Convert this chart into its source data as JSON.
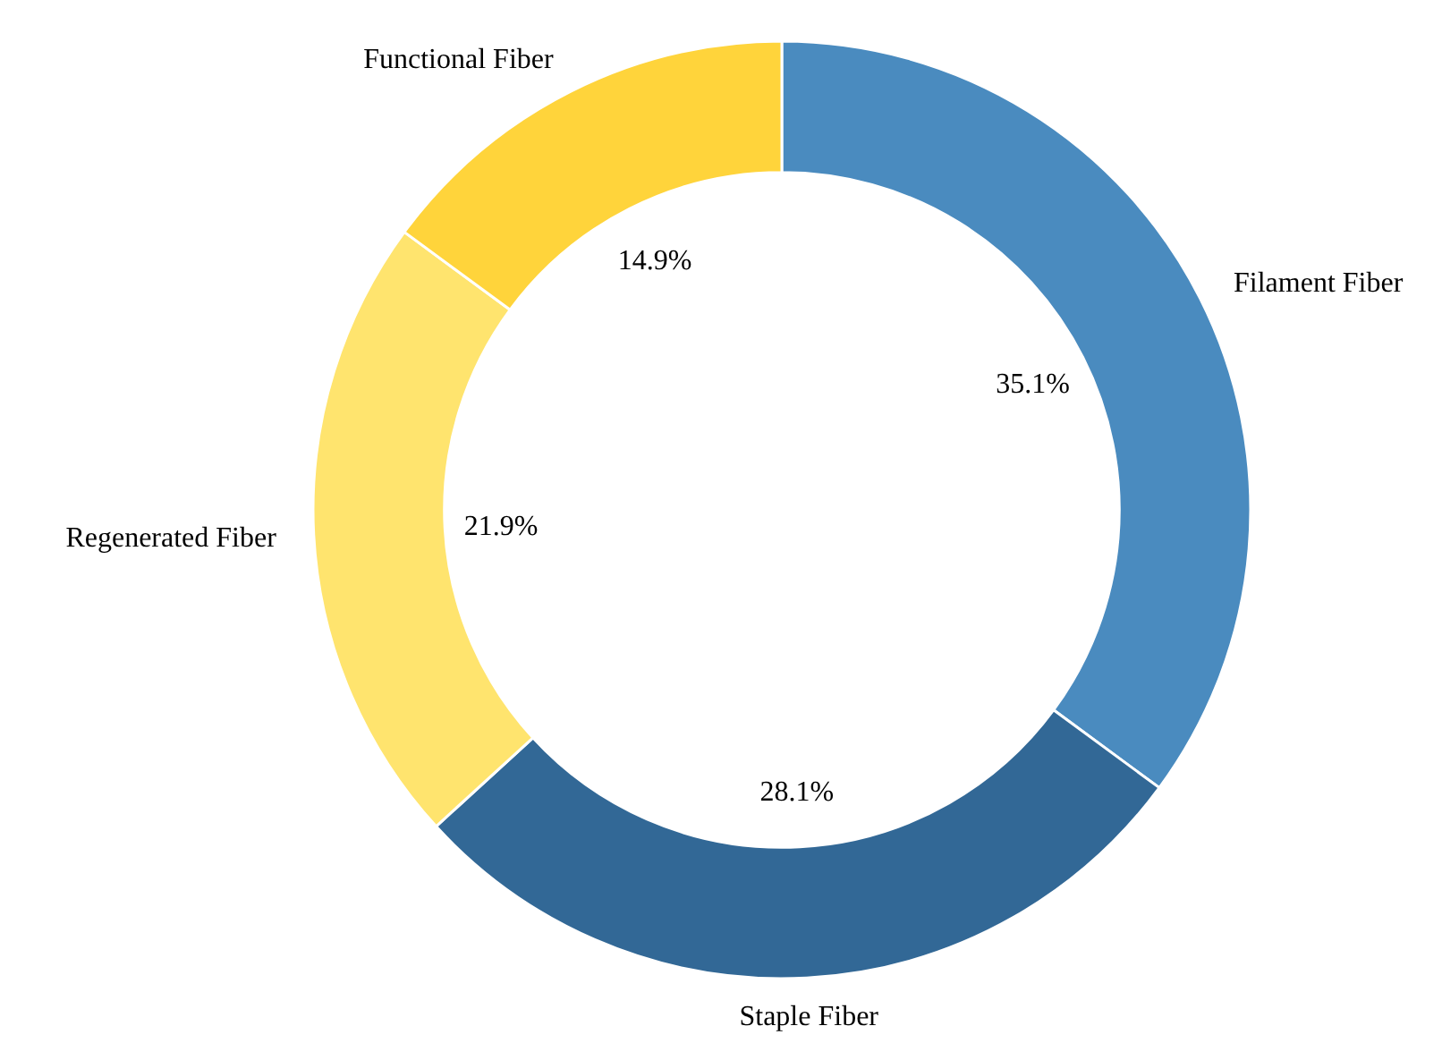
{
  "chart_data": {
    "type": "donut",
    "categories": [
      "Filament Fiber",
      "Staple Fiber",
      "Regenerated Fiber",
      "Functional Fiber"
    ],
    "values": [
      35.1,
      28.1,
      21.9,
      14.9
    ],
    "colors": [
      "#4a8bbf",
      "#326896",
      "#ffe46e",
      "#ffd43b"
    ],
    "value_labels": [
      "35.1%",
      "28.1%",
      "21.9%",
      "14.9%"
    ]
  }
}
